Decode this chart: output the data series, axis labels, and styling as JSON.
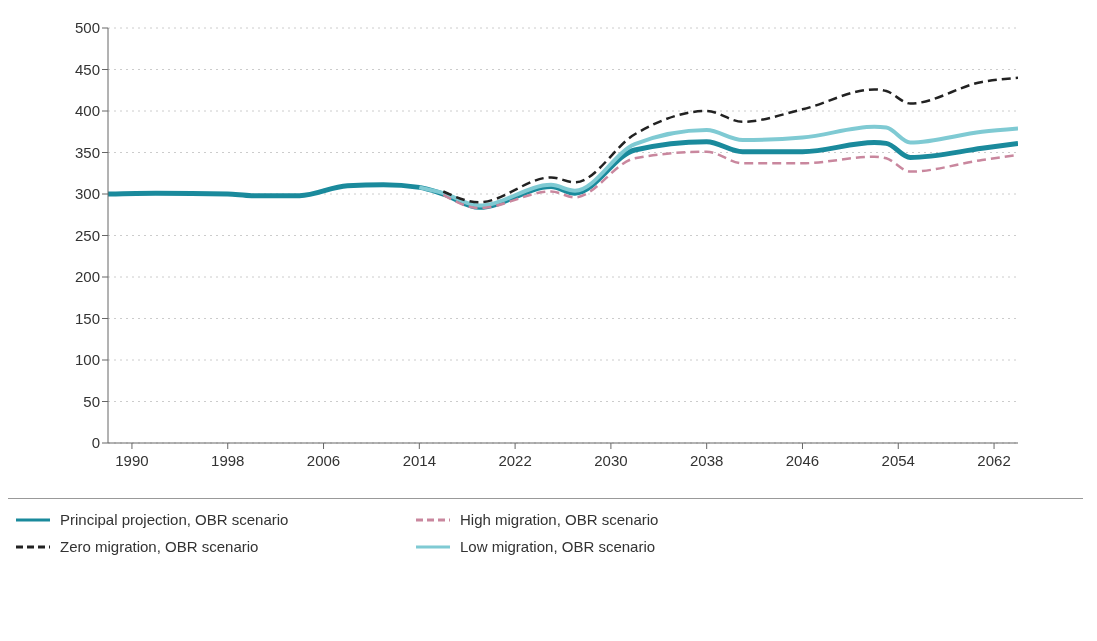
{
  "chart_data": {
    "type": "line",
    "x": [
      1988,
      1992,
      1998,
      2000,
      2004,
      2008,
      2011,
      2014,
      2016,
      2019,
      2025,
      2027,
      2032,
      2038,
      2041,
      2046,
      2052,
      2053,
      2055,
      2061,
      2064
    ],
    "series": [
      {
        "name": "Principal projection, OBR scenario",
        "color": "#1a8a9c",
        "line_style": "solid",
        "values": [
          300,
          301,
          300,
          298,
          298,
          310,
          311,
          308,
          300,
          284,
          309,
          301,
          353,
          363,
          351,
          351,
          362,
          361,
          344,
          355,
          361
        ]
      },
      {
        "name": "High migration, OBR scenario",
        "color": "#c9879e",
        "line_style": "dashed",
        "values": [
          null,
          null,
          null,
          null,
          null,
          null,
          null,
          null,
          299,
          283,
          303,
          296,
          343,
          351,
          337,
          337,
          345,
          343,
          327,
          341,
          347
        ]
      },
      {
        "name": "Zero migration, OBR scenario",
        "color": "#222222",
        "line_style": "dashed",
        "values": [
          null,
          null,
          null,
          null,
          null,
          null,
          null,
          null,
          303,
          290,
          320,
          314,
          372,
          400,
          387,
          402,
          426,
          424,
          409,
          435,
          440
        ]
      },
      {
        "name": "Low migration, OBR scenario",
        "color": "#7fcad3",
        "line_style": "solid",
        "values": [
          null,
          null,
          null,
          null,
          null,
          null,
          null,
          308,
          301,
          286,
          311,
          304,
          360,
          377,
          365,
          368,
          381,
          380,
          362,
          375,
          379
        ]
      }
    ],
    "xlim": [
      1988,
      2064
    ],
    "xticks": [
      1990,
      1998,
      2006,
      2014,
      2022,
      2030,
      2038,
      2046,
      2054,
      2062
    ],
    "ylim": [
      0,
      500
    ],
    "yticks": [
      0,
      50,
      100,
      150,
      200,
      250,
      300,
      350,
      400,
      450,
      500
    ],
    "grid": "y",
    "legend": "bottom",
    "marker": "none"
  }
}
